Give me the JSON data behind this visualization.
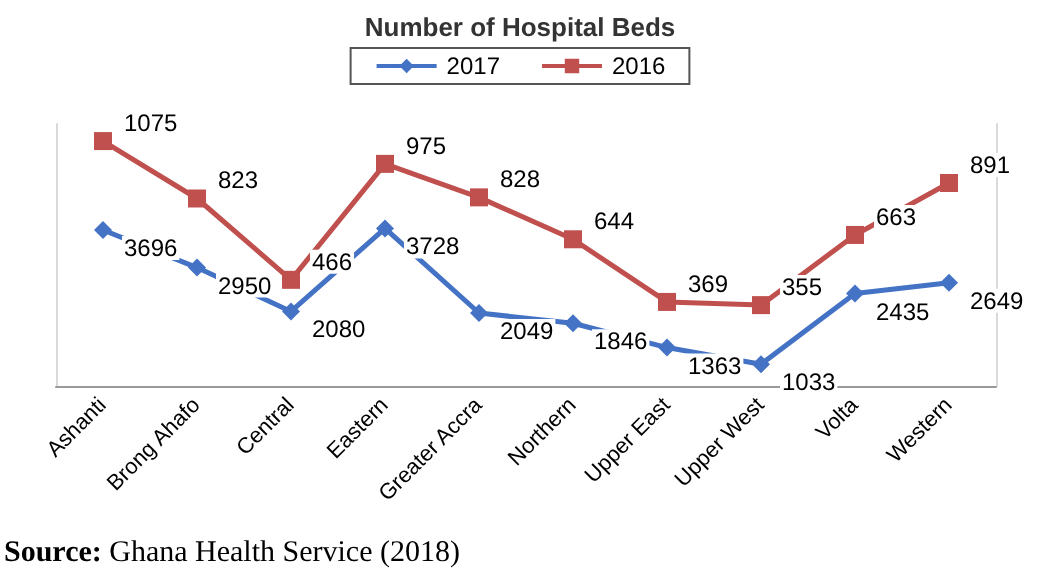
{
  "chart_data": {
    "type": "line",
    "title": "Number of Hospital Beds",
    "categories": [
      "Ashanti",
      "Brong Ahafo",
      "Central",
      "Eastern",
      "Greater Accra",
      "Northern",
      "Upper East",
      "Upper West",
      "Volta",
      "Western"
    ],
    "series": [
      {
        "name": "2017",
        "color": "#4472c4",
        "marker": "diamond",
        "values": [
          3696,
          2950,
          2080,
          3728,
          2049,
          1846,
          1363,
          1033,
          2435,
          2649
        ]
      },
      {
        "name": "2016",
        "color": "#c0504d",
        "marker": "square",
        "axis": "y2",
        "values": [
          1075,
          823,
          466,
          975,
          828,
          644,
          369,
          355,
          663,
          891
        ]
      }
    ],
    "ylim": [
      600,
      5800
    ],
    "y2lim": [
      0,
      1150
    ],
    "data_labels": true,
    "legend": "top",
    "grid": false,
    "tick_labels": "x",
    "annotations": [
      "Source: Ghana Health Service (2018)"
    ]
  }
}
